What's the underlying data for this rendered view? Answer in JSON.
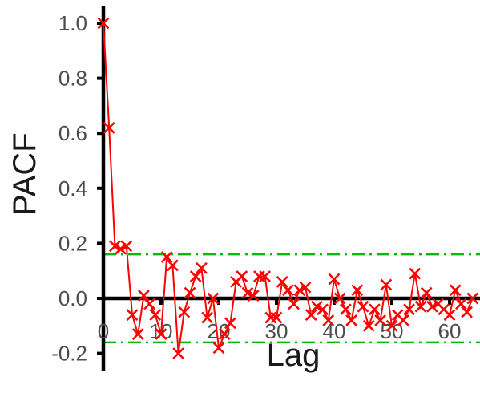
{
  "chart_data": {
    "type": "line",
    "title": "",
    "xlabel": "Lag",
    "ylabel": "PACF",
    "xlim": [
      0,
      64
    ],
    "ylim": [
      -0.25,
      1.05
    ],
    "x_ticks": [
      0,
      10,
      20,
      30,
      40,
      50,
      60
    ],
    "y_ticks": [
      -0.2,
      0.0,
      0.2,
      0.4,
      0.6,
      0.8,
      1.0
    ],
    "x_tick_labels": [
      "0",
      "10",
      "20",
      "30",
      "40",
      "50",
      "60"
    ],
    "y_tick_labels": [
      "-0.2",
      "0.0",
      "0.2",
      "0.4",
      "0.6",
      "0.8",
      "1.0"
    ],
    "confidence_bounds": [
      0.16,
      -0.16
    ],
    "grid": false,
    "colors": {
      "series": "#ff0000",
      "bounds": "#00bb00",
      "axis": "#000000",
      "zero_line": "#000000"
    },
    "series": [
      {
        "x": [
          0,
          1,
          2,
          3,
          4,
          5,
          6,
          7,
          8,
          9,
          10,
          11,
          12,
          13,
          14,
          15,
          16,
          17,
          18,
          19,
          20,
          21,
          22,
          23,
          24,
          25,
          26,
          27,
          28,
          29,
          30,
          31,
          32,
          33,
          34,
          35,
          36,
          37,
          38,
          39,
          40,
          41,
          42,
          43,
          44,
          45,
          46,
          47,
          48,
          49,
          50,
          51,
          52,
          53,
          54,
          55,
          56,
          57,
          58,
          59,
          60,
          61,
          62,
          63,
          64
        ],
        "values": [
          1.0,
          0.62,
          0.19,
          0.18,
          0.19,
          -0.06,
          -0.13,
          0.01,
          -0.02,
          -0.06,
          -0.13,
          0.15,
          0.12,
          -0.2,
          -0.05,
          0.02,
          0.08,
          0.11,
          -0.07,
          0.0,
          -0.18,
          -0.13,
          -0.09,
          0.06,
          0.08,
          0.02,
          0.01,
          0.08,
          0.08,
          -0.07,
          -0.07,
          0.06,
          0.03,
          -0.02,
          0.03,
          0.04,
          -0.06,
          -0.03,
          -0.04,
          -0.08,
          0.07,
          0.0,
          -0.04,
          -0.08,
          0.03,
          -0.03,
          -0.1,
          -0.04,
          -0.08,
          0.05,
          -0.1,
          -0.06,
          -0.08,
          -0.04,
          0.09,
          -0.03,
          0.02,
          -0.03,
          -0.02,
          -0.04,
          -0.06,
          0.03,
          -0.02,
          -0.05,
          0.0
        ]
      }
    ]
  }
}
